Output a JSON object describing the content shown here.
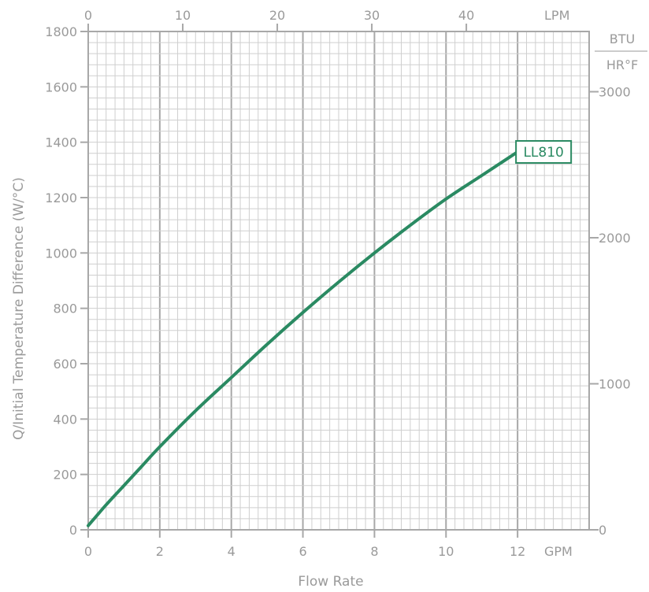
{
  "chart_data": {
    "type": "line",
    "title": "",
    "xlabel": "Flow Rate",
    "ylabel": "Q/Initial Temperature Difference (W/°C)",
    "x_unit": "GPM",
    "xlim": [
      0,
      14
    ],
    "ylim": [
      0,
      1800
    ],
    "x_ticks": [
      "0",
      "2",
      "4",
      "6",
      "8",
      "10",
      "12"
    ],
    "y_ticks": [
      "0",
      "200",
      "400",
      "600",
      "800",
      "1000",
      "1200",
      "1400",
      "1600",
      "1800"
    ],
    "top_axis": {
      "unit": "LPM",
      "ticks": [
        "0",
        "10",
        "20",
        "30",
        "40"
      ],
      "tick_values": [
        0,
        10,
        20,
        30,
        40
      ],
      "gpm_per_lpm": 0.2642
    },
    "right_axis": {
      "unit_numerator": "BTU",
      "unit_denominator": "HR°F",
      "ticks": [
        "0",
        "1000",
        "2000",
        "3000"
      ],
      "tick_values": [
        0,
        1000,
        2000,
        3000
      ],
      "w_per_c_per_unit": 0.5275
    },
    "grid": true,
    "series": [
      {
        "name": "LL810",
        "color": "#2a8a62",
        "x": [
          0,
          0.5,
          1,
          1.5,
          2,
          3,
          4,
          5,
          6,
          7,
          8,
          9,
          10,
          11,
          12
        ],
        "y": [
          15,
          90,
          160,
          230,
          300,
          430,
          550,
          670,
          785,
          895,
          1000,
          1100,
          1195,
          1280,
          1365
        ]
      }
    ]
  }
}
